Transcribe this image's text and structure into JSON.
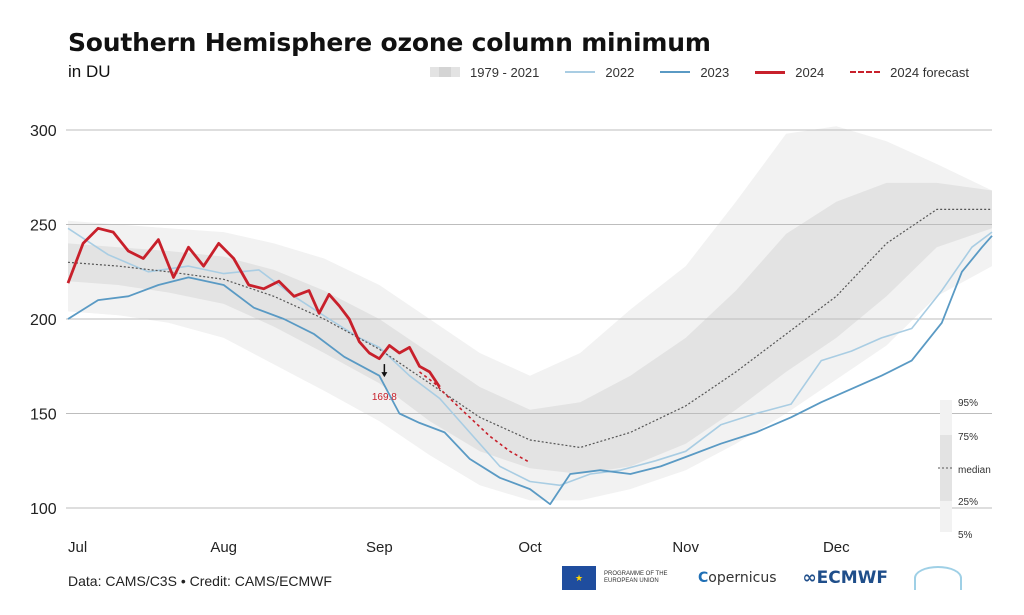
{
  "title": "Southern Hemisphere ozone column minimum",
  "subtitle": "in DU",
  "legend": {
    "band": "1979 - 2021",
    "y2022": "2022",
    "y2023": "2023",
    "y2024": "2024",
    "forecast": "2024 forecast"
  },
  "footer": {
    "credit": "Data: CAMS/C3S • Credit: CAMS/ECMWF",
    "eu_text": "PROGRAMME OF THE EUROPEAN UNION",
    "copernicus": "opernicus",
    "ecmwf": "ECMWF"
  },
  "colors": {
    "y2024": "#c8202b",
    "y2023": "#5a9ac4",
    "y2022": "#a9cde3",
    "median": "#555555",
    "band_outer": "#f2f2f2",
    "band_inner": "#e3e3e3",
    "grid": "#bdbdbd"
  },
  "chart_data": {
    "type": "line",
    "title": "Southern Hemisphere ozone column minimum",
    "ylabel": "in DU",
    "xlabel": "",
    "x_ticks": [
      "Jul",
      "Aug",
      "Sep",
      "Oct",
      "Nov",
      "Dec"
    ],
    "x_tick_days": [
      0,
      31,
      62,
      92,
      123,
      153
    ],
    "y_ticks": [
      100,
      150,
      200,
      250,
      300
    ],
    "ylim": [
      95,
      310
    ],
    "xlim": [
      0,
      184
    ],
    "grid": true,
    "legend_position": "top-right",
    "annotation": {
      "label": "169.8",
      "x": 63,
      "y": 169.8
    },
    "band_labels": [
      "95%",
      "75%",
      "median",
      "25%",
      "5%"
    ],
    "band_x": [
      0,
      10,
      20,
      31,
      41,
      51,
      62,
      72,
      82,
      92,
      102,
      112,
      123,
      133,
      143,
      153,
      163,
      173,
      184
    ],
    "p95": [
      252,
      250,
      248,
      246,
      240,
      232,
      218,
      200,
      182,
      170,
      182,
      205,
      228,
      262,
      298,
      302,
      294,
      282,
      268
    ],
    "p75": [
      240,
      238,
      236,
      233,
      226,
      215,
      200,
      182,
      164,
      152,
      156,
      170,
      190,
      215,
      245,
      262,
      272,
      272,
      268
    ],
    "p25": [
      220,
      218,
      214,
      208,
      196,
      182,
      166,
      146,
      130,
      121,
      118,
      122,
      134,
      152,
      172,
      190,
      212,
      238,
      248
    ],
    "p5": [
      204,
      202,
      198,
      190,
      176,
      162,
      146,
      128,
      112,
      104,
      104,
      110,
      120,
      134,
      150,
      168,
      186,
      212,
      228
    ],
    "series": [
      {
        "name": "2024",
        "x": [
          0,
          3,
          6,
          9,
          12,
          15,
          18,
          21,
          24,
          27,
          30,
          33,
          36,
          39,
          42,
          45,
          48,
          50,
          52,
          54,
          56,
          58,
          60,
          62,
          64,
          66,
          68,
          70,
          72,
          74
        ],
        "values": [
          219,
          240,
          248,
          246,
          236,
          232,
          242,
          222,
          238,
          228,
          240,
          232,
          218,
          216,
          220,
          212,
          215,
          203,
          213,
          207,
          200,
          188,
          182,
          179,
          186,
          182,
          185,
          175,
          172,
          164
        ]
      },
      {
        "name": "2024 forecast",
        "x": [
          70,
          73,
          76,
          80,
          84,
          88,
          92
        ],
        "values": [
          172,
          166,
          158,
          148,
          138,
          130,
          124
        ]
      },
      {
        "name": "median",
        "x": [
          0,
          10,
          20,
          31,
          41,
          51,
          62,
          72,
          82,
          92,
          102,
          112,
          123,
          133,
          143,
          153,
          163,
          173,
          184
        ],
        "values": [
          230,
          228,
          225,
          221,
          212,
          200,
          184,
          166,
          148,
          136,
          132,
          140,
          154,
          172,
          192,
          212,
          240,
          258,
          258
        ]
      },
      {
        "name": "2023",
        "x": [
          0,
          6,
          12,
          18,
          24,
          31,
          37,
          43,
          49,
          55,
          62,
          66,
          70,
          75,
          80,
          86,
          92,
          96,
          100,
          106,
          112,
          118,
          123,
          130,
          137,
          144,
          150,
          156,
          162,
          168,
          174,
          178,
          182,
          184
        ],
        "values": [
          200,
          210,
          212,
          218,
          222,
          218,
          206,
          200,
          192,
          180,
          170,
          150,
          145,
          140,
          126,
          116,
          110,
          102,
          118,
          120,
          118,
          122,
          127,
          134,
          140,
          148,
          156,
          163,
          170,
          178,
          198,
          225,
          238,
          244
        ]
      },
      {
        "name": "2022",
        "x": [
          0,
          8,
          16,
          24,
          31,
          38,
          45,
          52,
          58,
          62,
          68,
          74,
          80,
          86,
          92,
          98,
          104,
          110,
          117,
          123,
          130,
          137,
          144,
          150,
          156,
          162,
          168,
          174,
          180,
          184
        ],
        "values": [
          248,
          234,
          225,
          228,
          224,
          226,
          212,
          200,
          190,
          185,
          170,
          158,
          140,
          122,
          114,
          112,
          118,
          120,
          125,
          130,
          144,
          150,
          155,
          178,
          183,
          190,
          195,
          215,
          238,
          246
        ]
      }
    ]
  }
}
